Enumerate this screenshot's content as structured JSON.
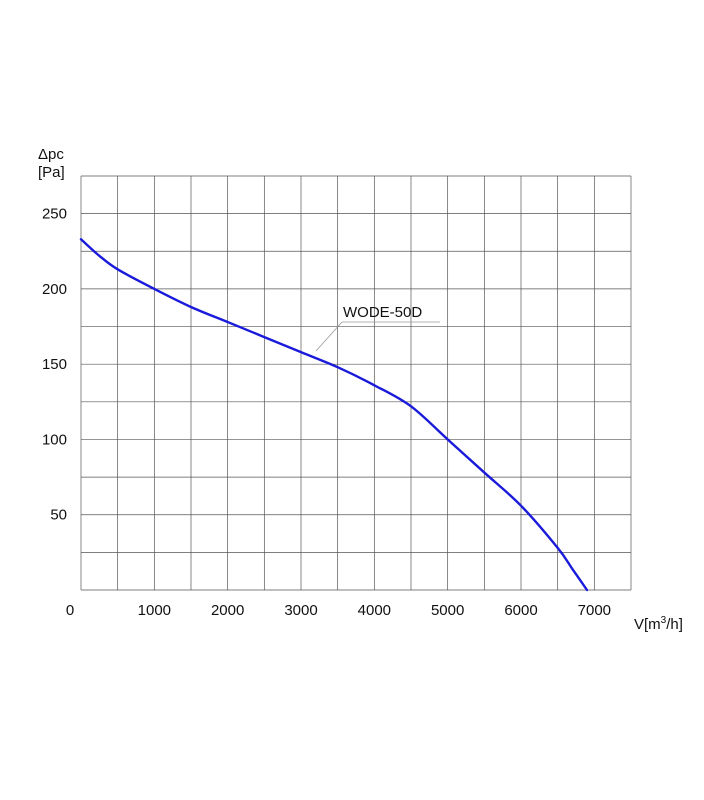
{
  "chart_data": {
    "type": "line",
    "title": "",
    "ylabel_line1": "Δpc",
    "ylabel_line2": "[Pa]",
    "xlabel": "V[m³/h]",
    "xlabel_main": "V[m",
    "xlabel_sup": "3",
    "xlabel_end": "/h]",
    "xlim": [
      0,
      7500
    ],
    "ylim": [
      0,
      275
    ],
    "grid": true,
    "x_ticks": [
      0,
      1000,
      2000,
      3000,
      4000,
      5000,
      6000,
      7000
    ],
    "x_tick_labels": [
      "0",
      "1000",
      "2000",
      "3000",
      "4000",
      "5000",
      "6000",
      "7000"
    ],
    "y_ticks": [
      50,
      100,
      150,
      200,
      250
    ],
    "y_tick_labels": [
      "50",
      "100",
      "150",
      "200",
      "250"
    ],
    "series": [
      {
        "name": "WODE-50D",
        "color": "#1a1adb",
        "x": [
          0,
          250,
          500,
          1000,
          1500,
          2000,
          2500,
          3000,
          3500,
          4000,
          4500,
          5000,
          5500,
          6000,
          6500,
          6700,
          6900
        ],
        "y": [
          233,
          222,
          213,
          200,
          188,
          178,
          168,
          158,
          148,
          136,
          122,
          100,
          78,
          56,
          28,
          14,
          0
        ]
      }
    ]
  }
}
